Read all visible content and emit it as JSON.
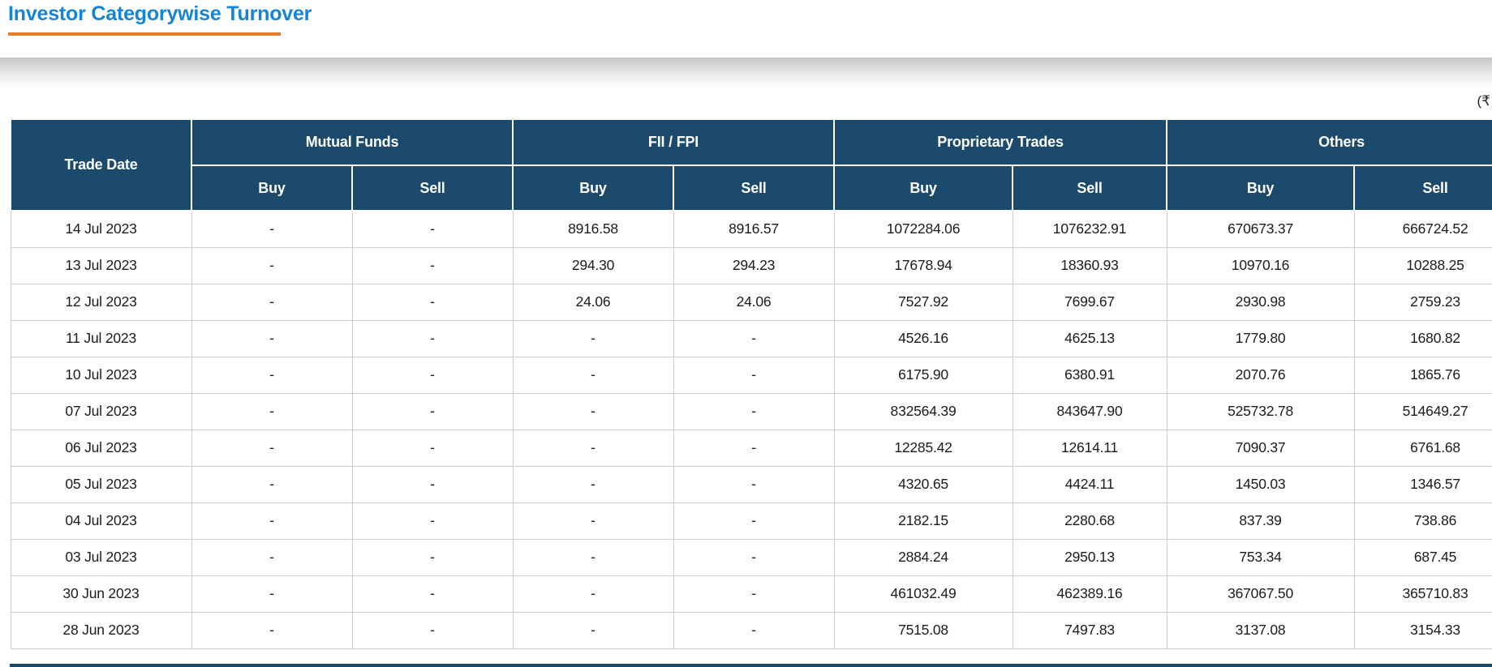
{
  "page": {
    "title": "Investor Categorywise Turnover",
    "currency_note": "(₹"
  },
  "colors": {
    "header_bg": "#1B4A6C",
    "title_blue": "#1584D6",
    "accent_orange": "#E87E2B",
    "row_border": "#cccccc",
    "data_text": "#1b1b1b"
  },
  "table": {
    "corner_header": "Trade Date",
    "buy_label": "Buy",
    "sell_label": "Sell",
    "groups": [
      "Mutual Funds",
      "FII / FPI",
      "Proprietary Trades",
      "Others"
    ],
    "rows": [
      {
        "date": "14 Jul 2023",
        "values": [
          "-",
          "-",
          "8916.58",
          "8916.57",
          "1072284.06",
          "1076232.91",
          "670673.37",
          "666724.52"
        ]
      },
      {
        "date": "13 Jul 2023",
        "values": [
          "-",
          "-",
          "294.30",
          "294.23",
          "17678.94",
          "18360.93",
          "10970.16",
          "10288.25"
        ]
      },
      {
        "date": "12 Jul 2023",
        "values": [
          "-",
          "-",
          "24.06",
          "24.06",
          "7527.92",
          "7699.67",
          "2930.98",
          "2759.23"
        ]
      },
      {
        "date": "11 Jul 2023",
        "values": [
          "-",
          "-",
          "-",
          "-",
          "4526.16",
          "4625.13",
          "1779.80",
          "1680.82"
        ]
      },
      {
        "date": "10 Jul 2023",
        "values": [
          "-",
          "-",
          "-",
          "-",
          "6175.90",
          "6380.91",
          "2070.76",
          "1865.76"
        ]
      },
      {
        "date": "07 Jul 2023",
        "values": [
          "-",
          "-",
          "-",
          "-",
          "832564.39",
          "843647.90",
          "525732.78",
          "514649.27"
        ]
      },
      {
        "date": "06 Jul 2023",
        "values": [
          "-",
          "-",
          "-",
          "-",
          "12285.42",
          "12614.11",
          "7090.37",
          "6761.68"
        ]
      },
      {
        "date": "05 Jul 2023",
        "values": [
          "-",
          "-",
          "-",
          "-",
          "4320.65",
          "4424.11",
          "1450.03",
          "1346.57"
        ]
      },
      {
        "date": "04 Jul 2023",
        "values": [
          "-",
          "-",
          "-",
          "-",
          "2182.15",
          "2280.68",
          "837.39",
          "738.86"
        ]
      },
      {
        "date": "03 Jul 2023",
        "values": [
          "-",
          "-",
          "-",
          "-",
          "2884.24",
          "2950.13",
          "753.34",
          "687.45"
        ]
      },
      {
        "date": "30 Jun 2023",
        "values": [
          "-",
          "-",
          "-",
          "-",
          "461032.49",
          "462389.16",
          "367067.50",
          "365710.83"
        ]
      },
      {
        "date": "28 Jun 2023",
        "values": [
          "-",
          "-",
          "-",
          "-",
          "7515.08",
          "7497.83",
          "3137.08",
          "3154.33"
        ]
      }
    ]
  }
}
